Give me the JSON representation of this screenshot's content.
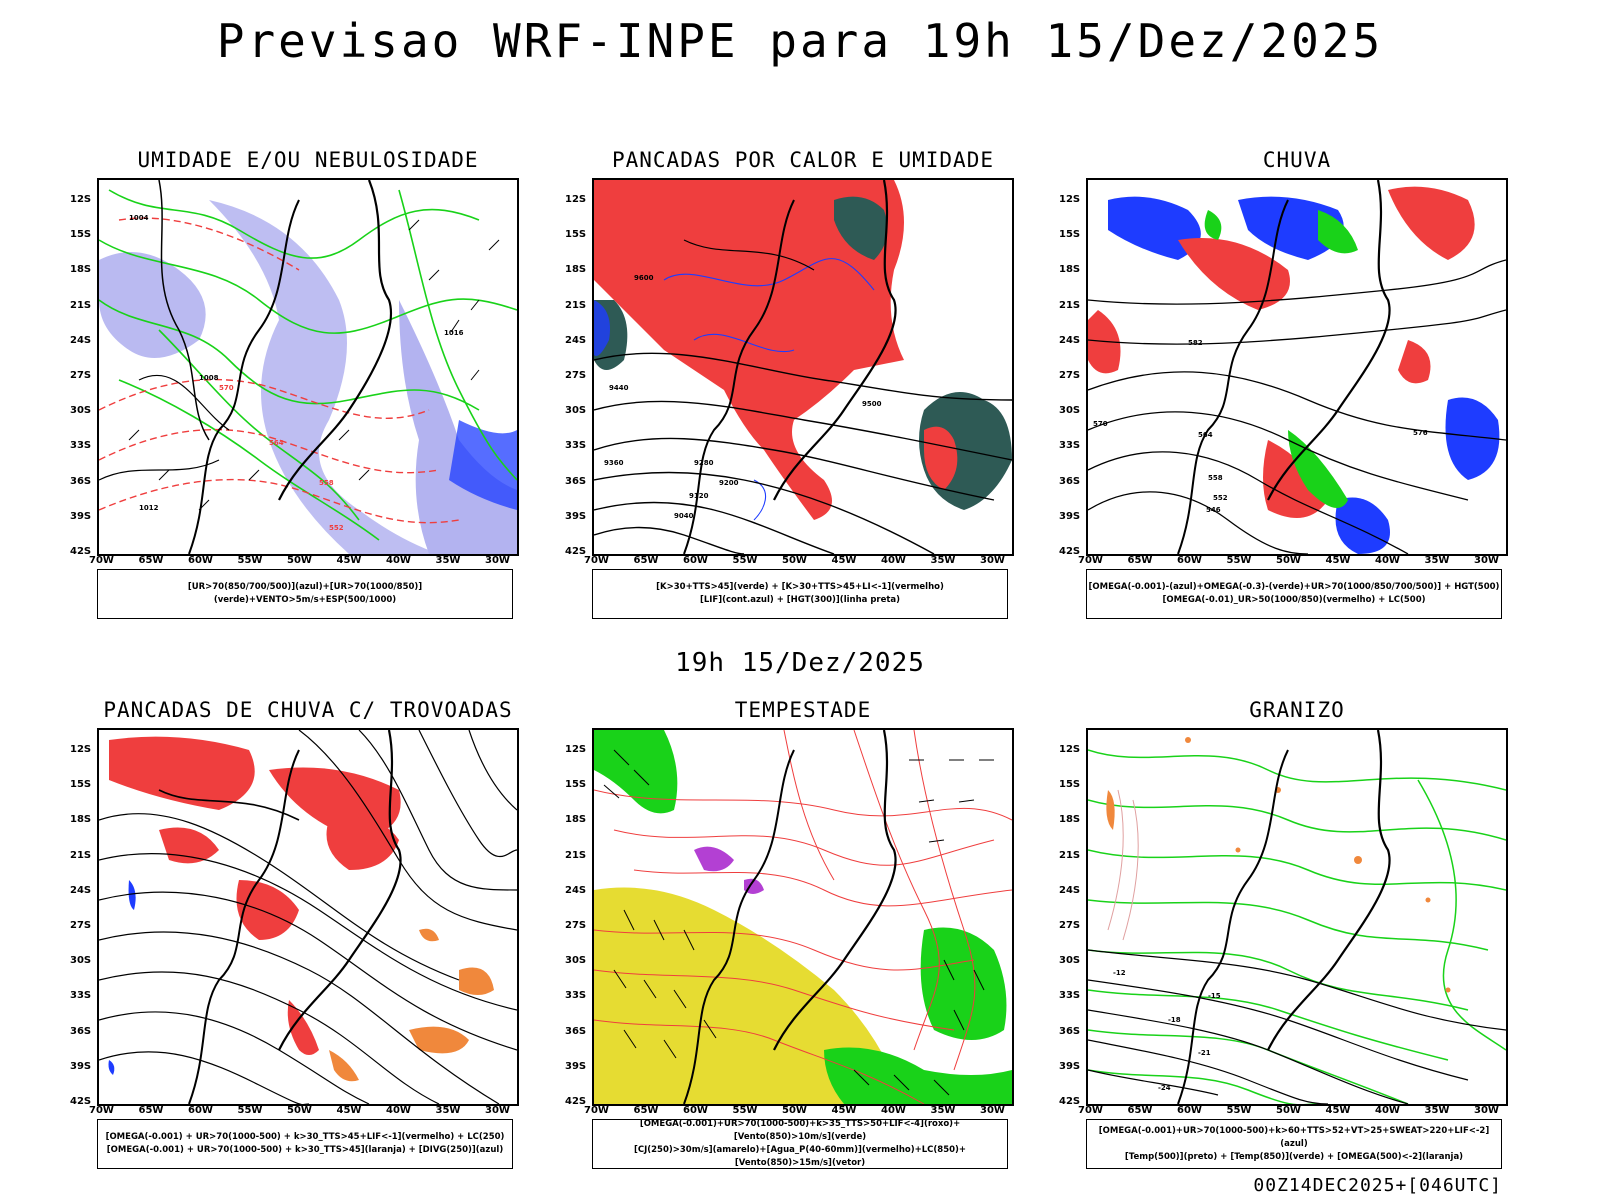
{
  "header": {
    "title": "Previsao WRF-INPE  para 19h 15/Dez/2025"
  },
  "mid_label": "19h 15/Dez/2025",
  "footer": "00Z14DEC2025+[046UTC]",
  "axes": {
    "lat_labels": [
      "12S",
      "15S",
      "18S",
      "21S",
      "24S",
      "27S",
      "30S",
      "33S",
      "36S",
      "39S",
      "42S"
    ],
    "lon_labels": [
      "70W",
      "65W",
      "60W",
      "55W",
      "50W",
      "45W",
      "40W",
      "35W",
      "30W"
    ]
  },
  "colors": {
    "red": "#ef3e3e",
    "green": "#19d219",
    "blue": "#1e3cff",
    "lavender": "#b3b3f0",
    "teal": "#2e5a55",
    "yellow": "#e6dc32",
    "orange": "#f0883c"
  },
  "panels": [
    {
      "id": "umidade",
      "title": "UMIDADE E/OU NEBULOSIDADE",
      "legend": [
        "[UR>70(850/700/500)](azul)+[UR>70(1000/850)](verde)+VENTO>5m/s+ESP(500/1000)"
      ],
      "contour_labels": [
        "1004",
        "1008",
        "1012",
        "1016",
        "570",
        "564",
        "558",
        "552"
      ]
    },
    {
      "id": "pancadas-calor",
      "title": "PANCADAS POR CALOR E UMIDADE",
      "legend": [
        "[K>30+TTS>45](verde) + [K>30+TTS>45+LI<-1](vermelho)",
        "[LIF](cont.azul) + [HGT(300)](linha preta)"
      ],
      "contour_labels": [
        "9600",
        "9440",
        "9360",
        "9280",
        "9200",
        "9120",
        "9040",
        "9500"
      ]
    },
    {
      "id": "chuva",
      "title": "CHUVA",
      "legend": [
        "[OMEGA(-0.001)-(azul)+OMEGA(-0.3)-(verde)+UR>70(1000/850/700/500)] + HGT(500)",
        "[OMEGA(-0.01)_UR>50(1000/850)(vermelho) + LC(500)"
      ],
      "contour_labels": [
        "582",
        "576",
        "570",
        "564",
        "558",
        "552",
        "546"
      ]
    },
    {
      "id": "trovoadas",
      "title": "PANCADAS DE CHUVA C/ TROVOADAS",
      "legend": [
        "[OMEGA(-0.001) + UR>70(1000-500) + k>30_TTS>45+LIF<-1](vermelho) + LC(250)",
        "[OMEGA(-0.001) + UR>70(1000-500) + k>30_TTS>45](laranja) + [DIVG(250)](azul)"
      ],
      "contour_labels": []
    },
    {
      "id": "tempestade",
      "title": "TEMPESTADE",
      "legend": [
        "[OMEGA(-0.001)+UR>70(1000-500)+k>35_TTS>50+LIF<-4](roxo)+[Vento(850)>10m/s](verde)",
        "[CJ(250)>30m/s](amarelo)+[Agua_P(40-60mm)](vermelho)+LC(850)+[Vento(850)>15m/s](vetor)"
      ],
      "contour_labels": []
    },
    {
      "id": "granizo",
      "title": "GRANIZO",
      "legend": [
        "[OMEGA(-0.001)+UR>70(1000-500)+k>60+TTS>52+VT>25+SWEAT>220+LIF<-2](azul)",
        "[Temp(500)](preto) + [Temp(850)](verde) + [OMEGA(500)<-2](laranja)"
      ],
      "contour_labels": [
        "-12",
        "-15",
        "-18",
        "-21",
        "-24"
      ]
    }
  ]
}
